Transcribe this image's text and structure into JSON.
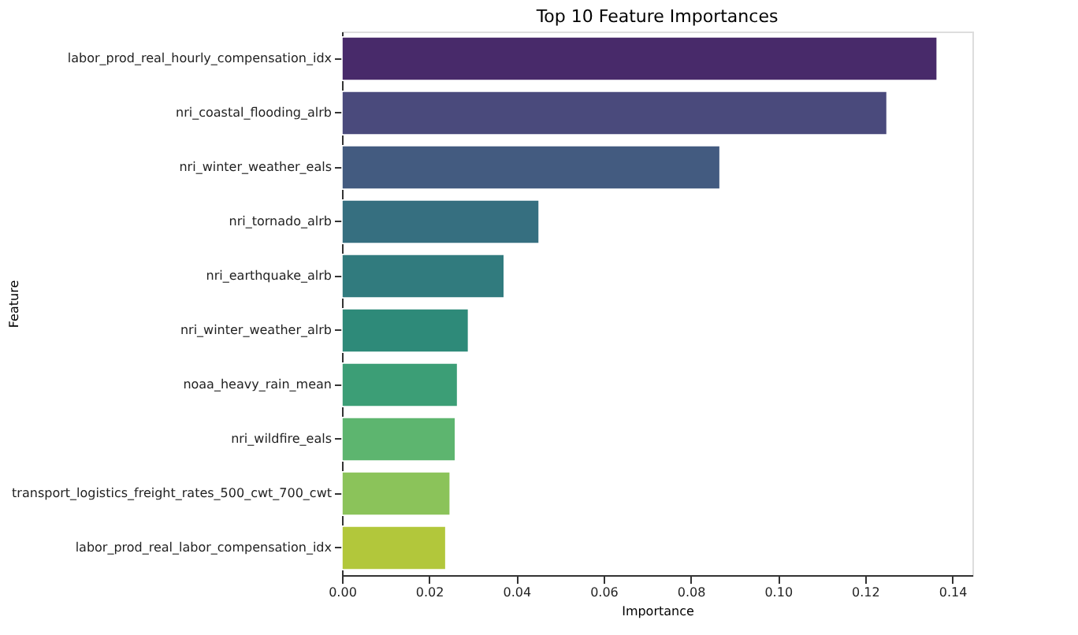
{
  "chart_data": {
    "type": "bar",
    "orientation": "horizontal",
    "title": "Top 10 Feature Importances",
    "xlabel": "Importance",
    "ylabel": "Feature",
    "categories": [
      "labor_prod_real_hourly_compensation_idx",
      "nri_coastal_flooding_alrb",
      "nri_winter_weather_eals",
      "nri_tornado_alrb",
      "nri_earthquake_alrb",
      "nri_winter_weather_alrb",
      "noaa_heavy_rain_mean",
      "nri_wildfire_eals",
      "transport_logistics_freight_rates_500_cwt_700_cwt",
      "labor_prod_real_labor_compensation_idx"
    ],
    "values": [
      0.1365,
      0.125,
      0.0867,
      0.0452,
      0.0372,
      0.029,
      0.0265,
      0.026,
      0.0248,
      0.0238
    ],
    "colors": [
      "#482a6a",
      "#4a4a7c",
      "#435b80",
      "#366f80",
      "#317b7e",
      "#2e8a79",
      "#3c9e76",
      "#5db56f",
      "#8bc35a",
      "#b2c73b"
    ],
    "xlim": [
      0,
      0.1446
    ],
    "xticks": [
      {
        "value": 0,
        "label": "0.00"
      },
      0.02,
      0.04,
      0.06,
      0.08,
      {
        "value": 0.1,
        "label": "0.10"
      },
      0.12,
      0.14
    ],
    "grid": false
  }
}
